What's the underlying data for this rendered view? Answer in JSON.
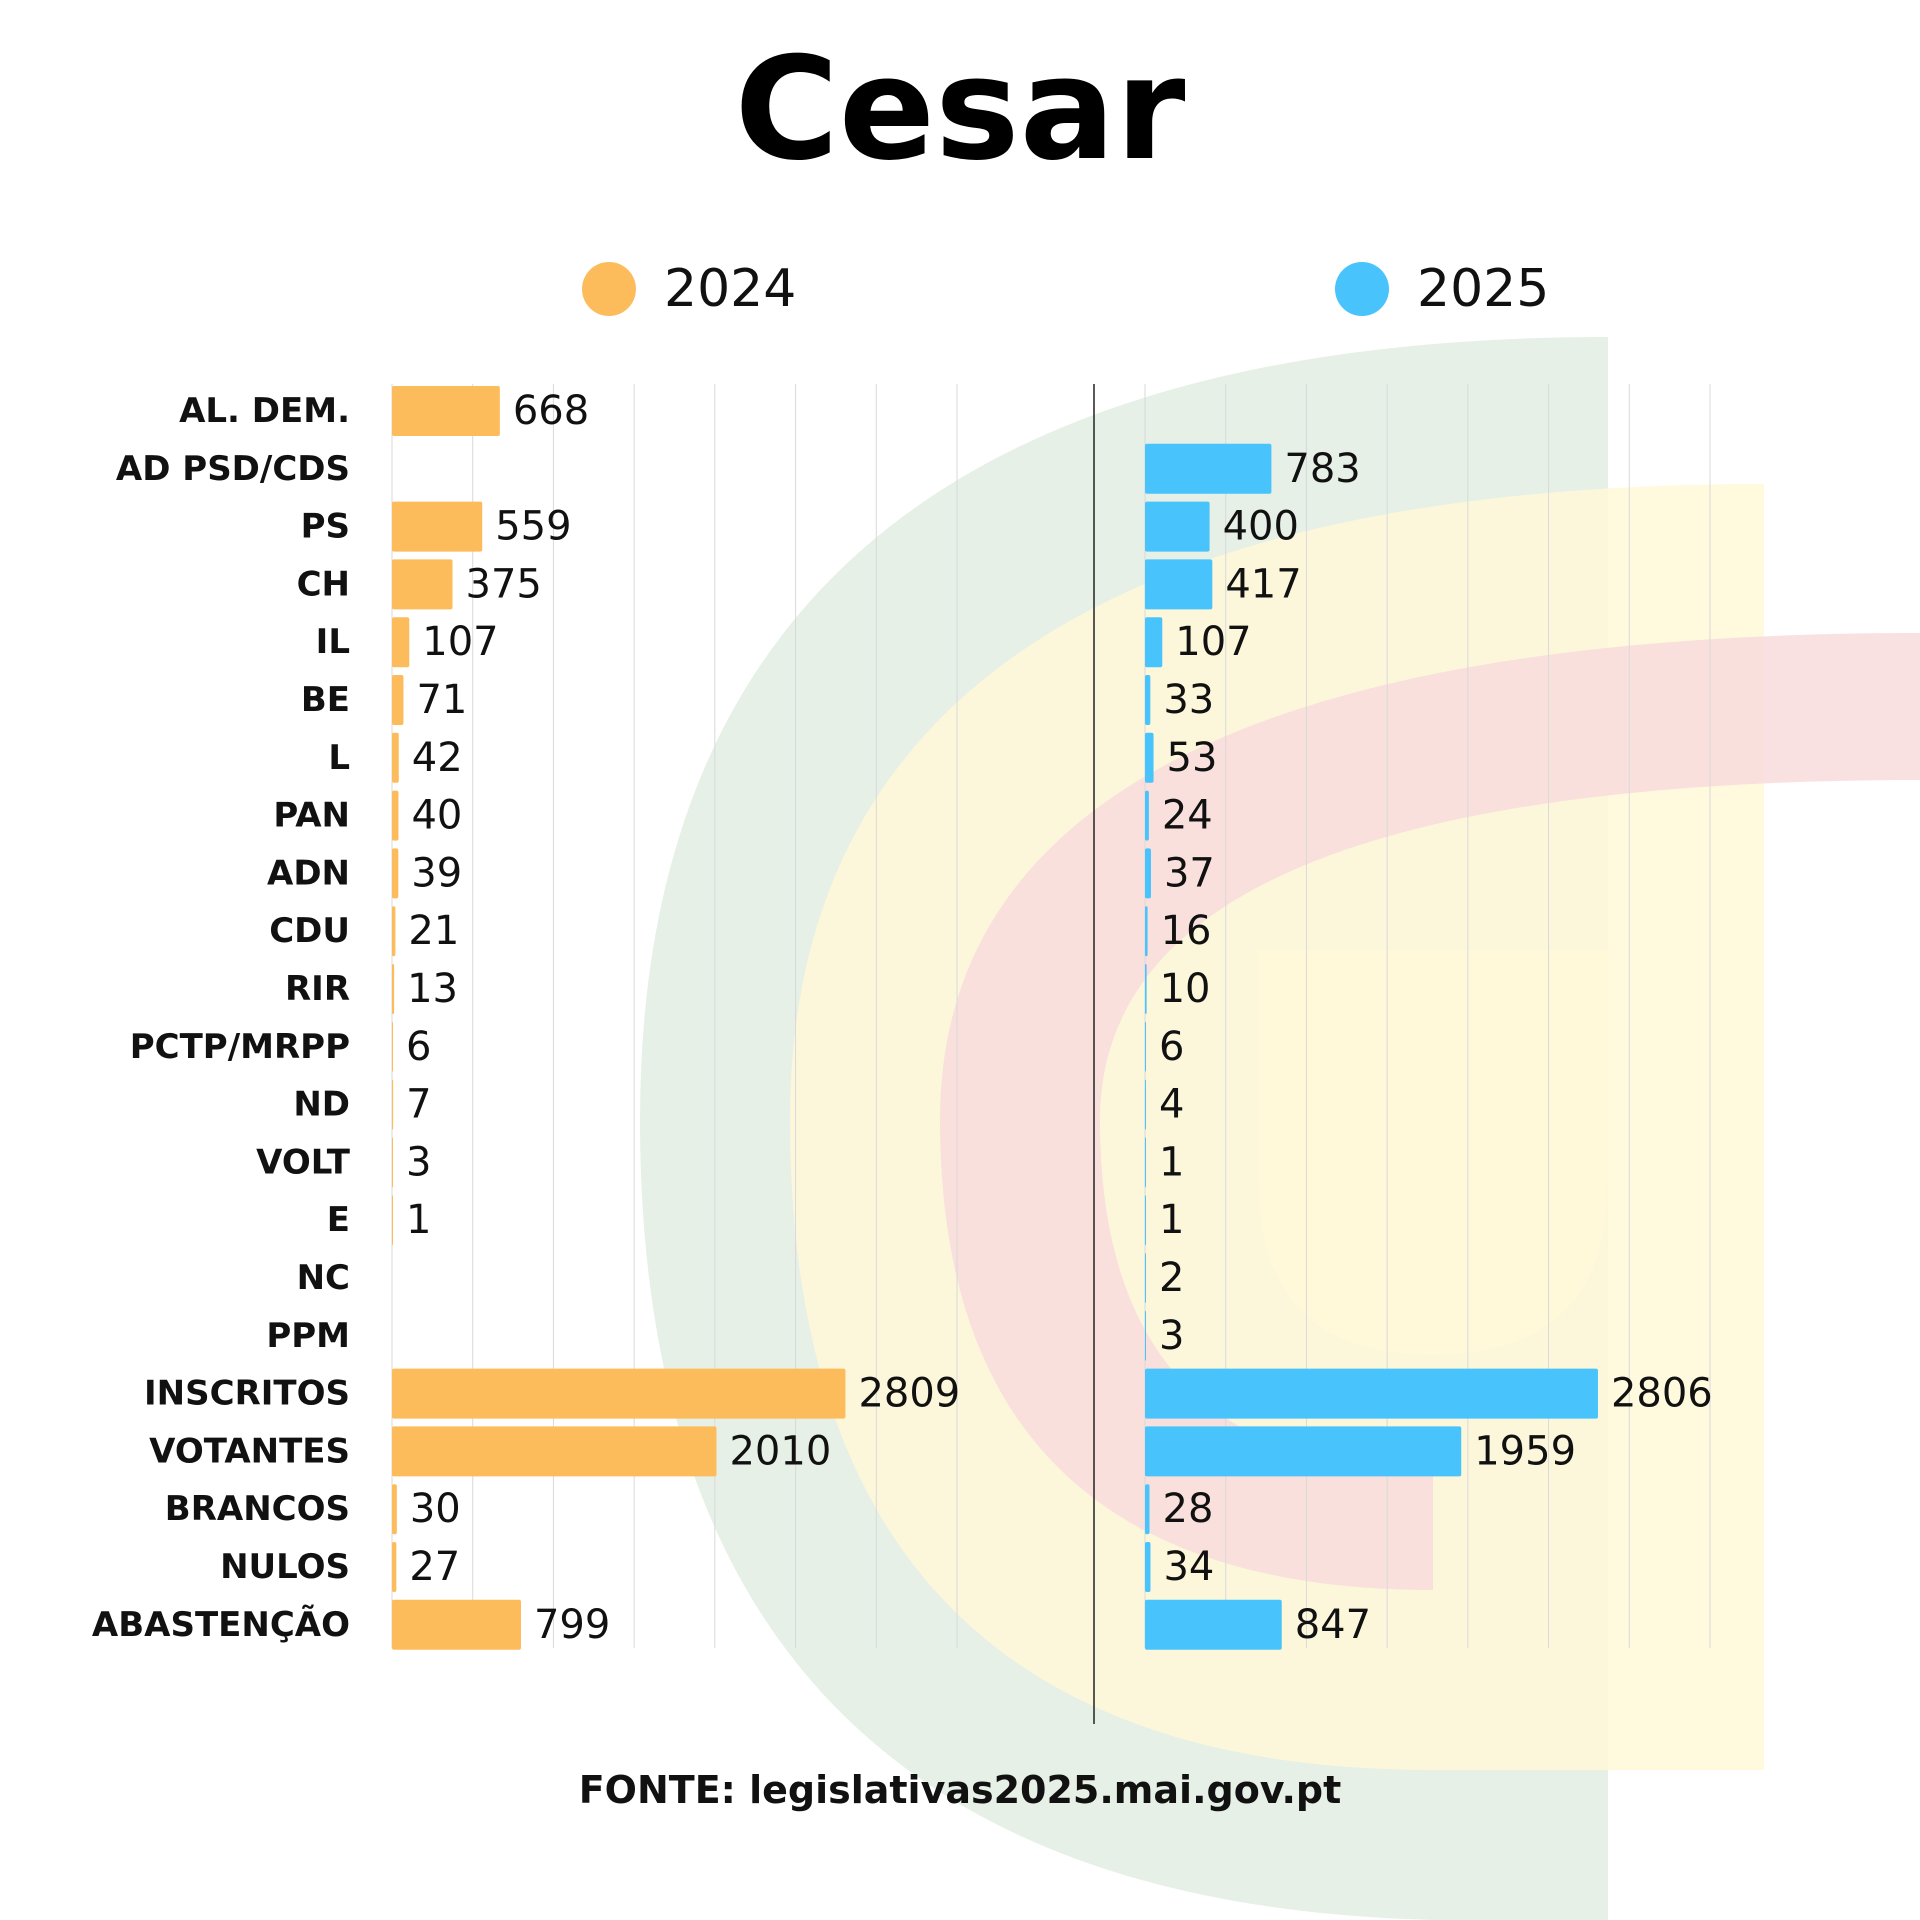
{
  "title": "Cesar",
  "source": "FONTE: legislativas2025.mai.gov.pt",
  "colors": {
    "2024": "#FDBC5B",
    "2025": "#48C3FC",
    "text": "#111111"
  },
  "legend": [
    {
      "label": "2024",
      "color": "#FDBC5B"
    },
    {
      "label": "2025",
      "color": "#48C3FC"
    }
  ],
  "chart_data": {
    "type": "bar",
    "orientation": "horizontal",
    "categories": [
      "AL. DEM.",
      "AD PSD/CDS",
      "PS",
      "CH",
      "IL",
      "BE",
      "L",
      "PAN",
      "ADN",
      "CDU",
      "RIR",
      "PCTP/MRPP",
      "ND",
      "VOLT",
      "E",
      "NC",
      "PPM",
      "INSCRITOS",
      "VOTANTES",
      "BRANCOS",
      "NULOS",
      "ABASTENÇÃO"
    ],
    "series": [
      {
        "name": "2024",
        "values": [
          668,
          null,
          559,
          375,
          107,
          71,
          42,
          40,
          39,
          21,
          13,
          6,
          7,
          3,
          1,
          null,
          null,
          2809,
          2010,
          30,
          27,
          799
        ]
      },
      {
        "name": "2025",
        "values": [
          null,
          783,
          400,
          417,
          107,
          33,
          53,
          24,
          37,
          16,
          10,
          6,
          4,
          1,
          1,
          2,
          3,
          2806,
          1959,
          28,
          34,
          847
        ]
      }
    ],
    "xlim": [
      0,
      3500
    ],
    "grid": true,
    "legend_position": "top"
  }
}
